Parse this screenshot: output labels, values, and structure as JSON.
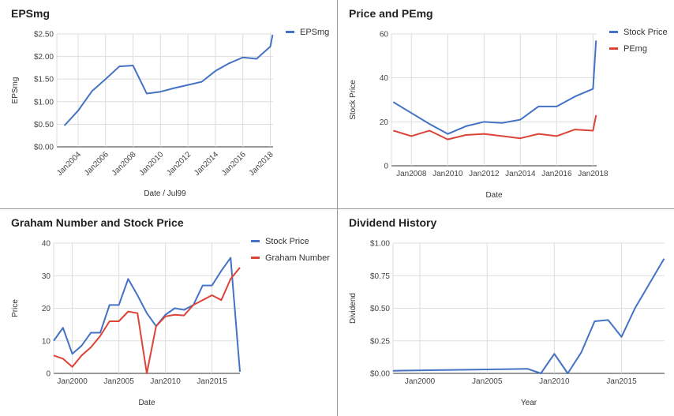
{
  "chart_data": [
    {
      "type": "line",
      "title": "EPSmg",
      "xlabel": "Date / Jul99",
      "ylabel": "EPSmg",
      "ylim": [
        0,
        2.5
      ],
      "yticks": [
        "$0.00",
        "$0.50",
        "$1.00",
        "$1.50",
        "$2.00",
        "$2.50"
      ],
      "xticks": [
        "Jan2004",
        "Jan2006",
        "Jan2008",
        "Jan2010",
        "Jan2012",
        "Jan2014",
        "Jan2016",
        "Jan2018"
      ],
      "legend": "right",
      "series": [
        {
          "name": "EPSmg",
          "color": "#4472C4",
          "x": [
            "2003-01",
            "2004-01",
            "2005-01",
            "2006-01",
            "2007-01",
            "2008-01",
            "2009-01",
            "2010-01",
            "2011-01",
            "2012-01",
            "2013-01",
            "2014-01",
            "2015-01",
            "2016-01",
            "2017-01",
            "2018-01",
            "2018-03"
          ],
          "values": [
            0.47,
            0.8,
            1.23,
            1.5,
            1.78,
            1.8,
            1.18,
            1.22,
            1.3,
            1.37,
            1.44,
            1.68,
            1.85,
            1.98,
            1.95,
            2.22,
            2.48
          ]
        }
      ]
    },
    {
      "type": "line",
      "title": "Price and PEmg",
      "xlabel": "Date",
      "ylabel": "Stock Price",
      "ylim": [
        0,
        60
      ],
      "yticks": [
        "0",
        "20",
        "40",
        "60"
      ],
      "xticks": [
        "Jan2008",
        "Jan2010",
        "Jan2012",
        "Jan2014",
        "Jan2016",
        "Jan2018"
      ],
      "legend": "right",
      "series": [
        {
          "name": "Stock Price",
          "color": "#4472C4",
          "x": [
            "2007-01",
            "2008-01",
            "2009-01",
            "2010-01",
            "2011-01",
            "2012-01",
            "2013-01",
            "2014-01",
            "2015-01",
            "2016-01",
            "2017-01",
            "2018-01",
            "2018-03"
          ],
          "values": [
            29,
            24,
            19,
            14.5,
            18,
            20,
            19.5,
            21,
            27,
            27,
            31.5,
            35,
            57
          ]
        },
        {
          "name": "PEmg",
          "color": "#DB4437",
          "x": [
            "2007-01",
            "2008-01",
            "2009-01",
            "2010-01",
            "2011-01",
            "2012-01",
            "2013-01",
            "2014-01",
            "2015-01",
            "2016-01",
            "2017-01",
            "2018-01",
            "2018-03"
          ],
          "values": [
            16,
            13.5,
            16,
            12,
            14,
            14.5,
            13.5,
            12.5,
            14.5,
            13.5,
            16.5,
            16,
            23
          ]
        }
      ]
    },
    {
      "type": "line",
      "title": "Graham Number and Stock Price",
      "xlabel": "Date",
      "ylabel": "Price",
      "ylim": [
        0,
        40
      ],
      "yticks": [
        "0",
        "10",
        "20",
        "30",
        "40"
      ],
      "xticks": [
        "Jan2000",
        "Jan2005",
        "Jan2010",
        "Jan2015"
      ],
      "legend": "right",
      "series": [
        {
          "name": "Stock Price",
          "color": "#4472C4",
          "x": [
            "1998-01",
            "1999-01",
            "2000-01",
            "2001-01",
            "2002-01",
            "2003-01",
            "2004-01",
            "2005-01",
            "2006-01",
            "2007-01",
            "2008-01",
            "2009-01",
            "2010-01",
            "2011-01",
            "2012-01",
            "2013-01",
            "2014-01",
            "2015-01",
            "2016-01",
            "2017-01",
            "2018-01"
          ],
          "values": [
            10,
            14,
            6,
            8.5,
            12.5,
            12.5,
            21,
            21,
            29,
            24,
            18.5,
            14.5,
            18,
            20,
            19.5,
            21,
            27,
            27,
            31.5,
            35.5,
            0.5
          ]
        },
        {
          "name": "Graham Number",
          "color": "#DB4437",
          "x": [
            "1998-01",
            "1999-01",
            "2000-01",
            "2001-01",
            "2002-01",
            "2003-01",
            "2004-01",
            "2005-01",
            "2006-01",
            "2007-01",
            "2008-01",
            "2009-01",
            "2010-01",
            "2011-01",
            "2012-01",
            "2013-01",
            "2014-01",
            "2015-01",
            "2016-01",
            "2017-01",
            "2018-01"
          ],
          "values": [
            5.5,
            4.5,
            2,
            5.5,
            8,
            11.5,
            16,
            16,
            19,
            18.5,
            0,
            14.5,
            17.5,
            18,
            17.8,
            21,
            22.5,
            24,
            22.5,
            29,
            32.5
          ]
        }
      ]
    },
    {
      "type": "line",
      "title": "Dividend History",
      "xlabel": "Year",
      "ylabel": "Dividend",
      "ylim": [
        0,
        1.0
      ],
      "yticks": [
        "$0.00",
        "$0.25",
        "$0.50",
        "$0.75",
        "$1.00"
      ],
      "xticks": [
        "Jan2000",
        "Jan2005",
        "Jan2010",
        "Jan2015"
      ],
      "legend": "none",
      "series": [
        {
          "name": "",
          "color": "#4472C4",
          "x": [
            "1998-01",
            "2005-01",
            "2008-01",
            "2009-01",
            "2010-01",
            "2011-01",
            "2012-01",
            "2013-01",
            "2014-01",
            "2015-01",
            "2016-01",
            "2018-03"
          ],
          "values": [
            0.02,
            0.03,
            0.035,
            0.0,
            0.15,
            0.0,
            0.16,
            0.4,
            0.41,
            0.28,
            0.5,
            0.88
          ]
        }
      ]
    }
  ]
}
